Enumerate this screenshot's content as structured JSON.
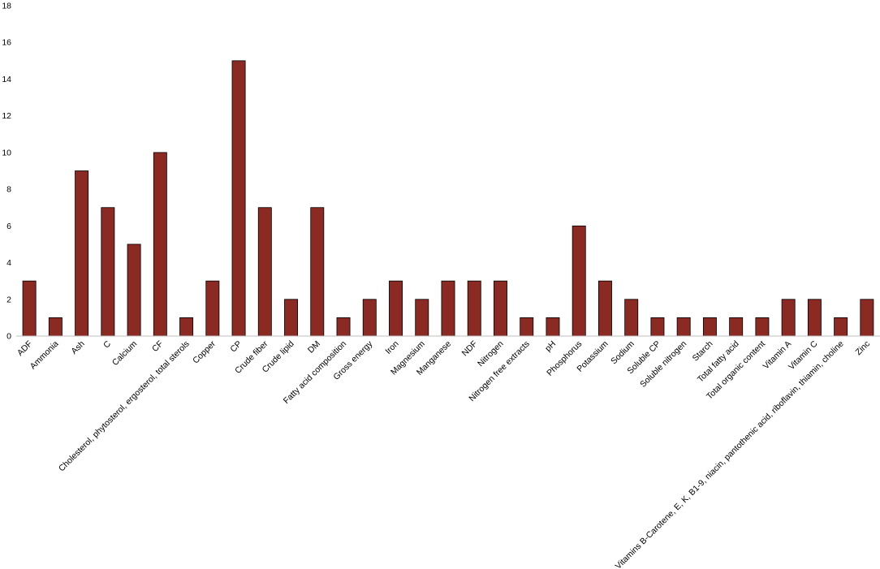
{
  "chart_data": {
    "type": "bar",
    "title": "",
    "xlabel": "",
    "ylabel": "",
    "ylim": [
      0,
      18
    ],
    "yticks": [
      0,
      2,
      4,
      6,
      8,
      10,
      12,
      14,
      16,
      18
    ],
    "grid": false,
    "legend": "none",
    "bar_color": "#8B2A22",
    "categories": [
      "ADF",
      "Ammonia",
      "Ash",
      "C",
      "Calcium",
      "CF",
      "Cholesterol, phytosterol, ergosterol, total sterols",
      "Copper",
      "CP",
      "Crude fiber",
      "Crude lipid",
      "DM",
      "Fatty acid composition",
      "Gross energy",
      "Iron",
      "Magnesium",
      "Manganese",
      "NDF",
      "Nitrogen",
      "Nitrogen free extracts",
      "pH",
      "Phosphorus",
      "Potassium",
      "Sodium",
      "Soluble CP",
      "Soluble nitrogen",
      "Starch",
      "Total fatty acid",
      "Total organic content",
      "Vitamin A",
      "Vitamin C",
      "Vitamins B-Carotene, E, K, B1-9, niacin, pantothenic acid, riboflavin, thiamin, choline",
      "Zinc"
    ],
    "values": [
      3,
      1,
      9,
      7,
      5,
      10,
      1,
      3,
      15,
      7,
      2,
      7,
      1,
      2,
      3,
      2,
      3,
      3,
      3,
      1,
      1,
      6,
      3,
      2,
      1,
      1,
      1,
      1,
      1,
      2,
      2,
      1,
      2
    ]
  }
}
